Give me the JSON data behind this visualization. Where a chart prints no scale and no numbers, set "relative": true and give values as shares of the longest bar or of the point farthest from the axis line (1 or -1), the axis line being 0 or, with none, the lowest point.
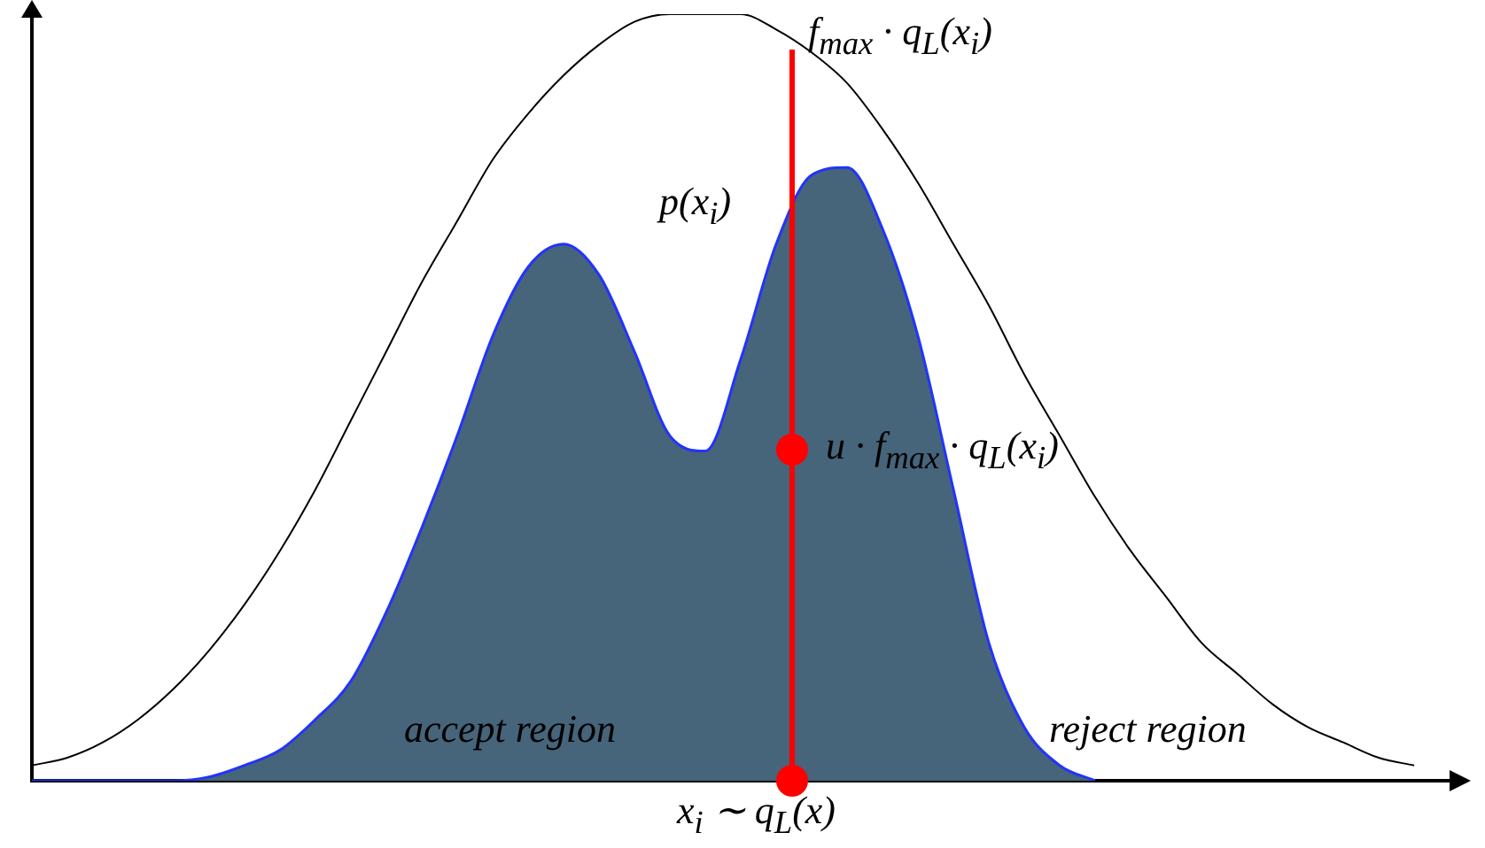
{
  "chart_data": {
    "type": "line",
    "relative": true,
    "legend": false,
    "grid": false,
    "marker": "none",
    "categories": [
      null,
      null,
      null,
      null,
      null,
      null,
      null,
      null,
      null,
      null,
      null,
      null,
      null,
      null,
      null,
      null,
      null,
      null,
      null,
      null,
      null,
      null,
      null,
      null,
      null,
      null,
      null,
      null,
      null,
      null,
      null,
      null,
      null,
      null,
      null,
      null,
      null,
      null,
      null,
      null,
      null
    ],
    "series": [
      {
        "type": "area",
        "color": "#46647a",
        "values": [
          0,
          0,
          0,
          0,
          0,
          0.005,
          0.02,
          0.04,
          0.08,
          0.13,
          0.22,
          0.33,
          0.45,
          0.58,
          0.67,
          0.7,
          0.66,
          0.56,
          0.45,
          0.43,
          0.55,
          0.7,
          0.79,
          0.8,
          0.72,
          0.58,
          0.38,
          0.18,
          0.07,
          0.02,
          0,
          null,
          null,
          null,
          null,
          null,
          null,
          null,
          null,
          null,
          null
        ]
      },
      {
        "type": "line",
        "color": "#000000",
        "values": [
          0.02,
          0.03,
          0.05,
          0.08,
          0.12,
          0.17,
          0.23,
          0.3,
          0.38,
          0.47,
          0.56,
          0.65,
          0.73,
          0.81,
          0.87,
          0.92,
          0.96,
          0.99,
          1,
          1,
          1,
          0.98,
          0.95,
          0.91,
          0.85,
          0.78,
          0.7,
          0.62,
          0.53,
          0.45,
          0.37,
          0.3,
          0.24,
          0.18,
          0.14,
          0.1,
          0.07,
          0.05,
          0.03,
          0.02,
          null
        ]
      }
    ],
    "annotations": [
      "f$_{max}$ · q$_{L}$(x$_{i}$)",
      "p(x$_{i}$)",
      "u · f$_{max}$ · q$_{L}$(x$_{i}$)",
      "accept region",
      "reject region",
      "x$_{i}$ ∼ q$_{L}$(x)"
    ]
  }
}
